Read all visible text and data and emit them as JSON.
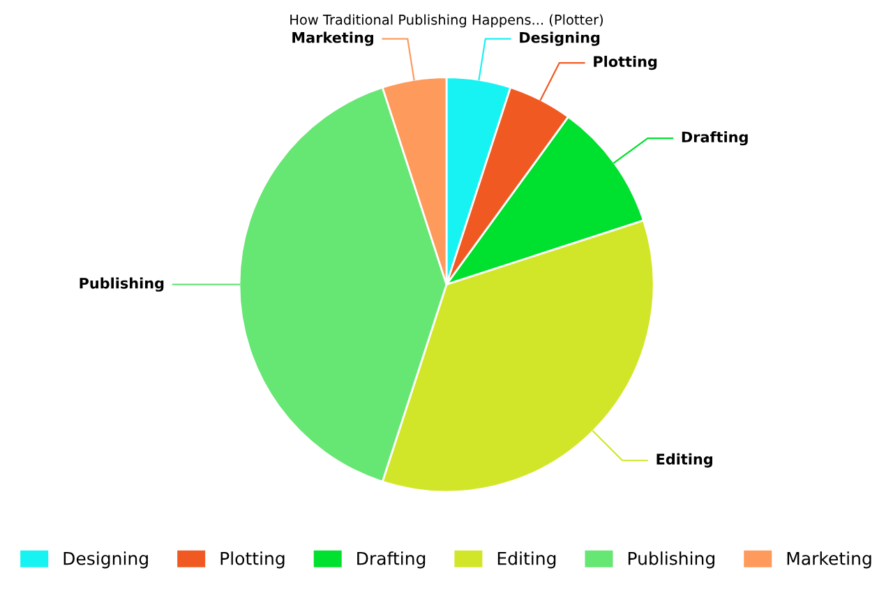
{
  "chart_data": {
    "type": "pie",
    "title": "How Traditional Publishing Happens... (Plotter)",
    "categories": [
      "Designing",
      "Plotting",
      "Drafting",
      "Editing",
      "Publishing",
      "Marketing"
    ],
    "values": [
      5,
      5,
      10,
      35,
      40,
      5
    ],
    "colors": [
      "#17f2f2",
      "#f05a22",
      "#00e02e",
      "#d2e629",
      "#66e672",
      "#fe9a5c"
    ],
    "legend": "bottom"
  }
}
